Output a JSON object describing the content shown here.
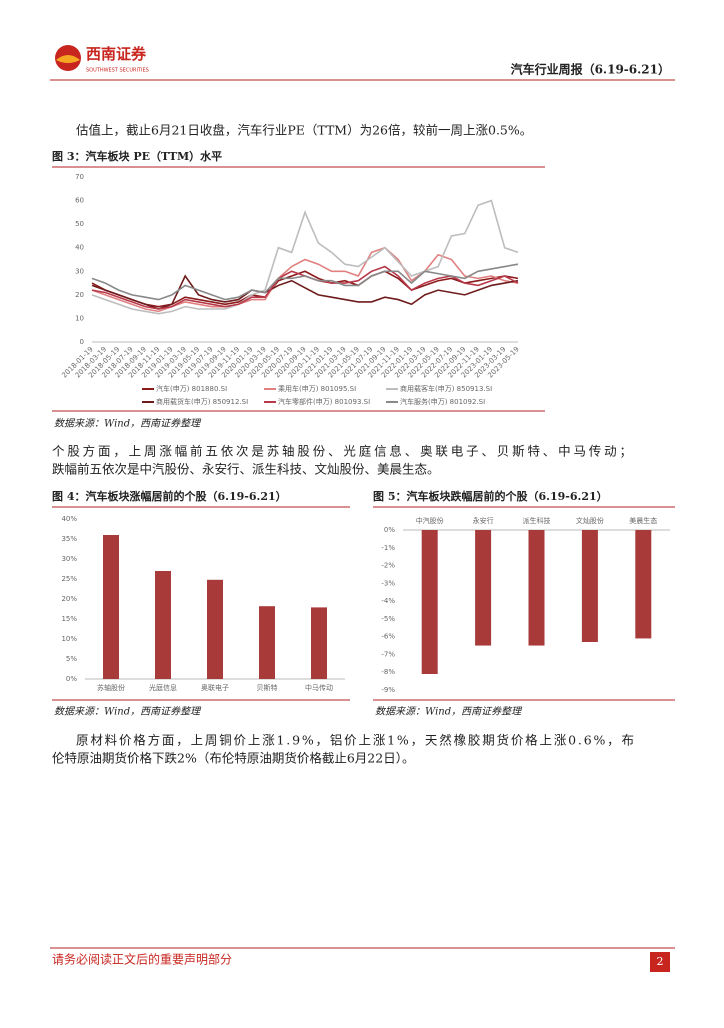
{
  "header": {
    "logo_cn": "西南证券",
    "logo_en": "SOUTHWEST SECURITIES",
    "report_title": "汽车行业周报（6.19-6.21）"
  },
  "body": {
    "paragraphs": [
      [
        "估值上，截止6月21日收盘，汽车行业PE（TTM）为26倍，较前一周上涨0.5%。"
      ],
      [
        "个股方面，上周涨幅前五依次是苏轴股份、光庭信息、奥联电子、贝斯特、中马传动；",
        "跌幅前五依次是中汽股份、永安行、派生科技、文灿股份、美晨生态。"
      ],
      [
        "原材料价格方面，上周铜价上涨1.9%，铝价上涨1%，天然橡胶期货价格上涨0.6%，布",
        "伦特原油期货价格下跌2%（布伦特原油期货价格截止6月22日）。"
      ]
    ]
  },
  "chart_data": [
    {
      "type": "line",
      "title": "图 3：汽车板块 PE（TTM）水平",
      "source": "数据来源：Wind，西南证券整理",
      "categories": [
        "2018-01-19",
        "2018-03-19",
        "2018-05-19",
        "2018-07-19",
        "2018-09-19",
        "2018-11-19",
        "2019-01-19",
        "2019-03-19",
        "2019-05-19",
        "2019-07-19",
        "2019-09-19",
        "2019-11-19",
        "2020-01-19",
        "2020-03-19",
        "2020-05-19",
        "2020-07-19",
        "2020-09-19",
        "2020-11-19",
        "2021-01-19",
        "2021-03-19",
        "2021-05-19",
        "2021-07-19",
        "2021-09-19",
        "2021-11-19",
        "2022-01-19",
        "2022-03-19",
        "2022-05-19",
        "2022-07-19",
        "2022-09-19",
        "2022-11-19",
        "2023-01-19",
        "2023-03-19",
        "2023-05-19"
      ],
      "ylim": [
        0,
        70
      ],
      "yticks": [
        0,
        10,
        20,
        30,
        40,
        50,
        60,
        70
      ],
      "series": [
        {
          "name": "汽车(申万) 801880.SI",
          "color": "#8b1a1a",
          "values": [
            25,
            22,
            20,
            18,
            16,
            15,
            16,
            19,
            18,
            17,
            16,
            17,
            20,
            19,
            26,
            28,
            30,
            27,
            25,
            26,
            24,
            28,
            30,
            27,
            22,
            24,
            26,
            27,
            25,
            26,
            27,
            28,
            27
          ]
        },
        {
          "name": "乘用车(申万) 801095.SI",
          "color": "#e08080",
          "values": [
            22,
            20,
            18,
            16,
            14,
            13,
            15,
            17,
            16,
            15,
            15,
            16,
            18,
            18,
            27,
            32,
            35,
            33,
            30,
            30,
            28,
            38,
            40,
            35,
            26,
            30,
            37,
            35,
            28,
            27,
            28,
            26,
            25
          ]
        },
        {
          "name": "商用载客车(申万) 850913.SI",
          "color": "#bdbdbd",
          "values": [
            20,
            18,
            16,
            14,
            13,
            12,
            13,
            15,
            14,
            14,
            14,
            16,
            20,
            22,
            40,
            38,
            55,
            42,
            38,
            33,
            32,
            36,
            40,
            34,
            28,
            30,
            32,
            45,
            46,
            58,
            60,
            40,
            38
          ]
        },
        {
          "name": "商用载货车(申万) 850912.SI",
          "color": "#6e1c1c",
          "values": [
            24,
            22,
            20,
            18,
            16,
            14,
            16,
            28,
            20,
            18,
            17,
            18,
            22,
            21,
            24,
            26,
            23,
            20,
            19,
            18,
            17,
            17,
            19,
            18,
            16,
            20,
            22,
            21,
            20,
            22,
            24,
            25,
            26
          ]
        },
        {
          "name": "汽车零部件(申万) 801093.SI",
          "color": "#b8394a",
          "values": [
            22,
            21,
            19,
            17,
            15,
            14,
            15,
            18,
            17,
            16,
            15,
            16,
            19,
            19,
            27,
            30,
            28,
            26,
            25,
            25,
            26,
            30,
            32,
            28,
            22,
            25,
            27,
            28,
            25,
            24,
            26,
            28,
            25
          ]
        },
        {
          "name": "汽车服务(申万) 801092.SI",
          "color": "#888888",
          "values": [
            27,
            25,
            22,
            20,
            19,
            18,
            20,
            24,
            22,
            20,
            18,
            19,
            22,
            21,
            27,
            27,
            28,
            26,
            26,
            24,
            24,
            28,
            30,
            30,
            25,
            30,
            29,
            28,
            27,
            30,
            31,
            32,
            33
          ]
        }
      ]
    },
    {
      "type": "bar",
      "title": "图 4：汽车板块涨幅居前的个股（6.19-6.21）",
      "source": "数据来源：Wind，西南证券整理",
      "color": "#a83a3a",
      "categories": [
        "苏轴股份",
        "光庭信息",
        "奥联电子",
        "贝斯特",
        "中马传动"
      ],
      "values": [
        36,
        27,
        24.8,
        18.2,
        17.9
      ],
      "ylim": [
        0,
        40
      ],
      "yticks": [
        {
          "value": 0,
          "label": "0%"
        },
        {
          "value": 5,
          "label": "5%"
        },
        {
          "value": 10,
          "label": "10%"
        },
        {
          "value": 15,
          "label": "15%"
        },
        {
          "value": 20,
          "label": "20%"
        },
        {
          "value": 25,
          "label": "25%"
        },
        {
          "value": 30,
          "label": "30%"
        },
        {
          "value": 35,
          "label": "35%"
        },
        {
          "value": 40,
          "label": "40%"
        }
      ]
    },
    {
      "type": "bar",
      "title": "图 5：汽车板块跌幅居前的个股（6.19-6.21）",
      "source": "数据来源：Wind，西南证券整理",
      "color": "#a83a3a",
      "categories": [
        "中汽股份",
        "永安行",
        "派生科技",
        "文灿股份",
        "美晨生态"
      ],
      "values": [
        -8.1,
        -6.5,
        -6.5,
        -6.3,
        -6.1
      ],
      "ylim": [
        -9,
        0
      ],
      "yticks": [
        {
          "value": 0,
          "label": "0%"
        },
        {
          "value": -1,
          "label": "-1%"
        },
        {
          "value": -2,
          "label": "-2%"
        },
        {
          "value": -3,
          "label": "-3%"
        },
        {
          "value": -4,
          "label": "-4%"
        },
        {
          "value": -5,
          "label": "-5%"
        },
        {
          "value": -6,
          "label": "-6%"
        },
        {
          "value": -7,
          "label": "-7%"
        },
        {
          "value": -8,
          "label": "-8%"
        },
        {
          "value": -9,
          "label": "-9%"
        }
      ]
    }
  ],
  "footer": {
    "notice": "请务必阅读正文后的重要声明部分",
    "page": "2"
  }
}
